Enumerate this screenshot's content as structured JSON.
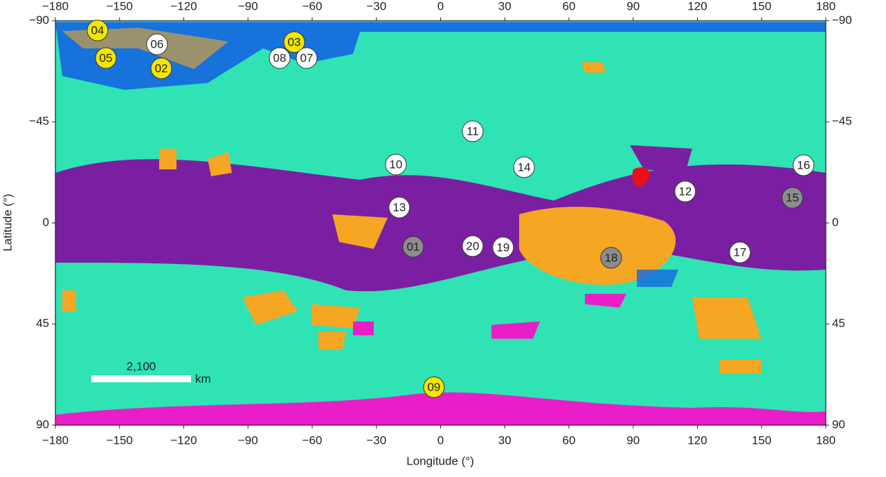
{
  "map": {
    "x_label": "Longitude (°)",
    "y_label": "Latitude (°)",
    "xlim": [
      -180,
      180
    ],
    "ylim": [
      -90,
      90
    ],
    "xticks": [
      {
        "value": -180,
        "label": "−180"
      },
      {
        "value": -150,
        "label": "−150"
      },
      {
        "value": -120,
        "label": "−120"
      },
      {
        "value": -90,
        "label": "−90"
      },
      {
        "value": -60,
        "label": "−60"
      },
      {
        "value": -30,
        "label": "−30"
      },
      0,
      30,
      60,
      90,
      120,
      150,
      180
    ],
    "yticks": [
      {
        "value": -90,
        "label": "−90"
      },
      {
        "value": -45,
        "label": "−45"
      },
      0,
      45,
      90
    ],
    "sites": [
      {
        "label": "04",
        "lon": -160.3,
        "lat": -85.7,
        "color": "#f2e600"
      },
      {
        "label": "05",
        "lon": -156.4,
        "lat": -73.4,
        "color": "#f2e600"
      },
      {
        "label": "06",
        "lon": -132.5,
        "lat": -79.5,
        "color": "#ffffff"
      },
      {
        "label": "02",
        "lon": -130.5,
        "lat": -68.8,
        "color": "#f2e600"
      },
      {
        "label": "03",
        "lon": -68.4,
        "lat": -80.5,
        "color": "#f2e600"
      },
      {
        "label": "08",
        "lon": -75.2,
        "lat": -73.4,
        "color": "#ffffff"
      },
      {
        "label": "07",
        "lon": -62.6,
        "lat": -73.4,
        "color": "#ffffff"
      },
      {
        "label": "11",
        "lon": 15.0,
        "lat": -40.8,
        "color": "#ffffff"
      },
      {
        "label": "10",
        "lon": -20.9,
        "lat": -26.0,
        "color": "#ffffff"
      },
      {
        "label": "14",
        "lon": 39.0,
        "lat": -24.8,
        "color": "#ffffff"
      },
      {
        "label": "16",
        "lon": 169.6,
        "lat": -25.7,
        "color": "#ffffff"
      },
      {
        "label": "12",
        "lon": 114.3,
        "lat": -14.0,
        "color": "#ffffff"
      },
      {
        "label": "15",
        "lon": 164.4,
        "lat": -11.2,
        "color": "#8c8c8c"
      },
      {
        "label": "13",
        "lon": -19.3,
        "lat": -6.9,
        "color": "#ffffff"
      },
      {
        "label": "01",
        "lon": -12.8,
        "lat": 10.6,
        "color": "#8c8c8c"
      },
      {
        "label": "20",
        "lon": 15.0,
        "lat": 10.3,
        "color": "#ffffff"
      },
      {
        "label": "19",
        "lon": 29.2,
        "lat": 10.9,
        "color": "#ffffff"
      },
      {
        "label": "18",
        "lon": 79.7,
        "lat": 15.5,
        "color": "#8c8c8c"
      },
      {
        "label": "17",
        "lon": 139.9,
        "lat": 13.1,
        "color": "#ffffff"
      },
      {
        "label": "09",
        "lon": -3.1,
        "lat": 73.1,
        "color": "#f2e600"
      }
    ],
    "scale_bar": {
      "label": "2,100",
      "unit": "km"
    }
  }
}
